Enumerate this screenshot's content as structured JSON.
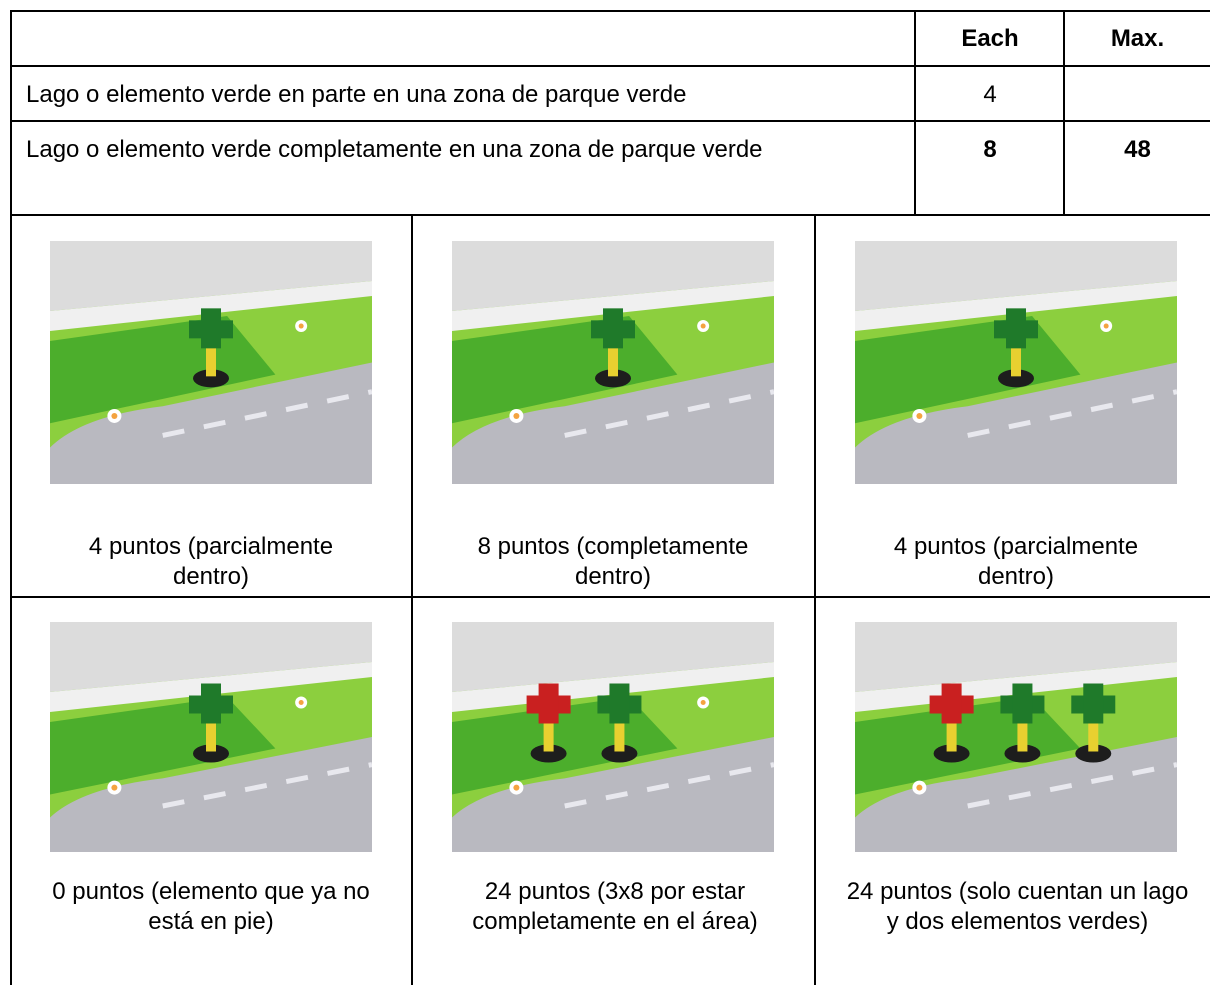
{
  "table": {
    "header": [
      "Each",
      "Max."
    ],
    "rows": [
      [
        "Lago o elemento verde en parte en una zona de parque verde",
        "4"
      ],
      [
        "Lago o elemento verde completamente en una zona de parque verde",
        "8",
        "48"
      ]
    ]
  },
  "photos": {
    "captions": [
      "4 puntos (parcialmente dentro)",
      "8 puntos (completamente dentro)",
      "4 puntos (parcialmente dentro)",
      "0 puntos (elemento que ya no está en pie)",
      "24 puntos (3x8 por estar completamente en el área)",
      "24 puntos (solo cuentan un lago y dos elementos verdes)"
    ]
  }
}
